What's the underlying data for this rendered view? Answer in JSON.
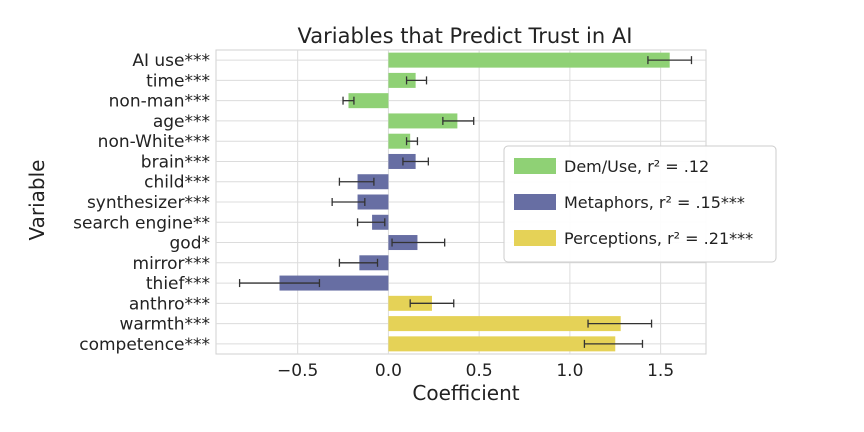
{
  "chart_data": {
    "type": "bar",
    "orientation": "horizontal",
    "title": "Variables that Predict Trust in AI",
    "xlabel": "Coefficient",
    "ylabel": "Variable",
    "xlim": [
      -0.95,
      1.75
    ],
    "xticks": [
      -0.5,
      0.0,
      0.5,
      1.0,
      1.5
    ],
    "xtick_labels": [
      "−0.5",
      "0.0",
      "0.5",
      "1.0",
      "1.5"
    ],
    "grid": true,
    "legend_position": "right",
    "categories": [
      "AI use***",
      "time***",
      "non-man***",
      "age***",
      "non-White***",
      "brain***",
      "child***",
      "synthesizer***",
      "search engine**",
      "god*",
      "mirror***",
      "thief***",
      "anthro***",
      "warmth***",
      "competence***"
    ],
    "values": [
      1.55,
      0.15,
      -0.22,
      0.38,
      0.12,
      0.15,
      -0.17,
      -0.17,
      -0.09,
      0.16,
      -0.16,
      -0.6,
      0.24,
      1.28,
      1.25
    ],
    "error_low": [
      1.43,
      0.1,
      -0.25,
      0.3,
      0.1,
      0.08,
      -0.27,
      -0.31,
      -0.17,
      0.02,
      -0.27,
      -0.82,
      0.12,
      1.1,
      1.08
    ],
    "error_high": [
      1.67,
      0.21,
      -0.19,
      0.47,
      0.16,
      0.22,
      -0.08,
      -0.13,
      -0.02,
      0.31,
      -0.06,
      -0.38,
      0.36,
      1.45,
      1.4
    ],
    "groups": [
      0,
      0,
      0,
      0,
      0,
      1,
      1,
      1,
      1,
      1,
      1,
      1,
      2,
      2,
      2
    ],
    "series": [
      {
        "name": "Dem/Use",
        "r2_label": "r² = .12",
        "color": "#8fd175"
      },
      {
        "name": "Metaphors",
        "r2_label": "r² = .15***",
        "color": "#676ea3"
      },
      {
        "name": "Perceptions",
        "r2_label": "r² = .21***",
        "color": "#e5d257"
      }
    ]
  }
}
